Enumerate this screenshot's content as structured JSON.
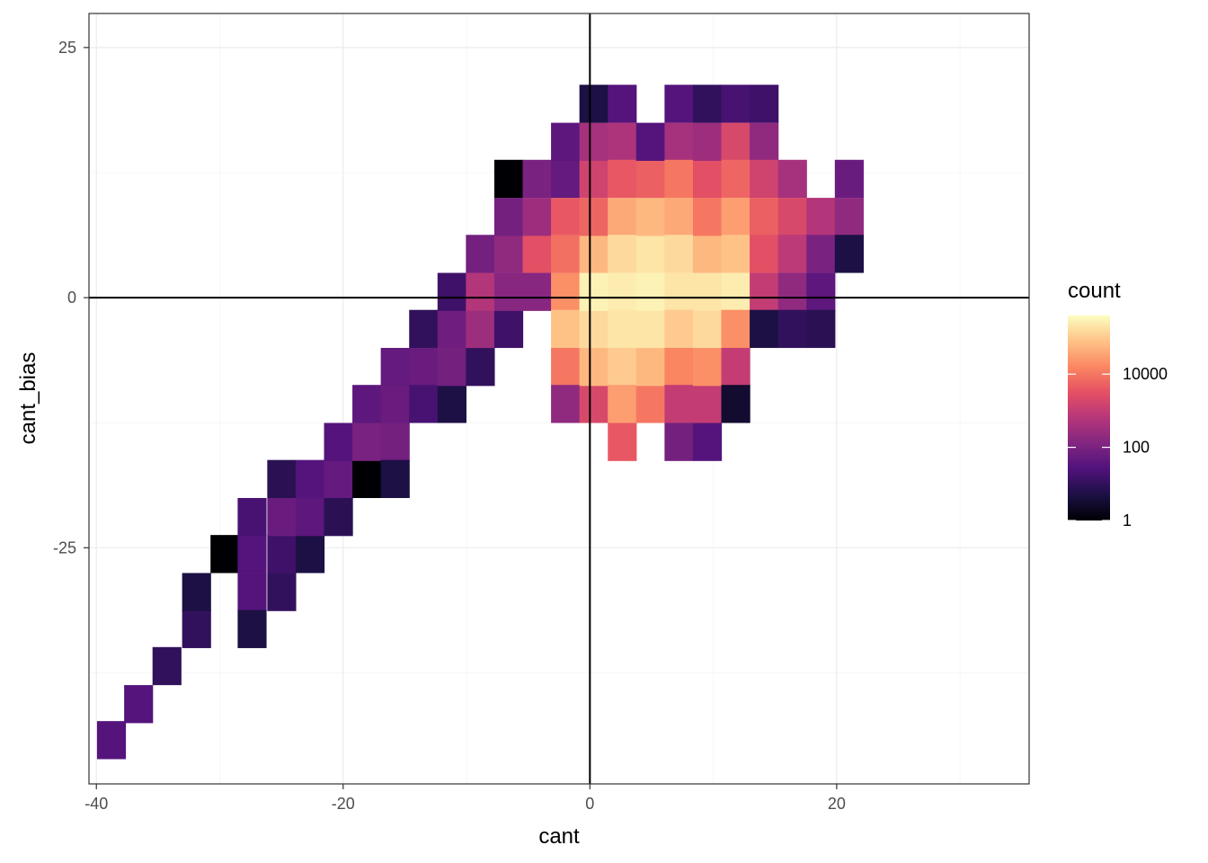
{
  "chart_data": {
    "type": "heatmap",
    "xlabel": "cant",
    "ylabel": "cant_bias",
    "xlim": [
      -40.6,
      35.6
    ],
    "ylim": [
      -48.6,
      28.4
    ],
    "x_ticks": [
      -40,
      -20,
      0,
      20
    ],
    "x_tick_labels": [
      "-40",
      "-20",
      "0",
      "20"
    ],
    "y_ticks": [
      -25,
      0,
      25
    ],
    "y_tick_labels": [
      "-25",
      "0",
      "25"
    ],
    "reference_lines": {
      "x": 0,
      "y": 0
    },
    "grid": true,
    "bin_width": 2.3,
    "bin_height": 3.75,
    "legend": {
      "title": "count",
      "scale": "log10",
      "palette": "magma",
      "breaks": [
        1,
        100,
        10000
      ],
      "break_labels": [
        "1",
        "100",
        "10000"
      ],
      "max": 400000,
      "placement": "right"
    },
    "palette_colors": [
      "#000004",
      "#1c1044",
      "#4f127b",
      "#812581",
      "#b5367a",
      "#e55064",
      "#fb8761",
      "#fec287",
      "#fcfdbf"
    ],
    "bins": [
      {
        "x": -38.8,
        "y": -44.2,
        "count": 30
      },
      {
        "x": -36.6,
        "y": -40.6,
        "count": 30
      },
      {
        "x": -34.3,
        "y": -36.8,
        "count": 10
      },
      {
        "x": -31.9,
        "y": -33.1,
        "count": 10
      },
      {
        "x": -31.9,
        "y": -29.4,
        "count": 5
      },
      {
        "x": -29.6,
        "y": -25.6,
        "count": 1
      },
      {
        "x": -27.4,
        "y": -29.4,
        "count": 30
      },
      {
        "x": -27.4,
        "y": -33.1,
        "count": 5
      },
      {
        "x": -27.4,
        "y": -25.6,
        "count": 30
      },
      {
        "x": -27.4,
        "y": -21.9,
        "count": 20
      },
      {
        "x": -25.0,
        "y": -25.6,
        "count": 15
      },
      {
        "x": -25.0,
        "y": -21.9,
        "count": 60
      },
      {
        "x": -25.0,
        "y": -29.4,
        "count": 10
      },
      {
        "x": -25.0,
        "y": -18.1,
        "count": 8
      },
      {
        "x": -22.7,
        "y": -25.6,
        "count": 5
      },
      {
        "x": -22.7,
        "y": -21.9,
        "count": 40
      },
      {
        "x": -22.7,
        "y": -18.1,
        "count": 30
      },
      {
        "x": -20.4,
        "y": -21.9,
        "count": 8
      },
      {
        "x": -20.4,
        "y": -18.1,
        "count": 50
      },
      {
        "x": -20.4,
        "y": -14.4,
        "count": 30
      },
      {
        "x": -18.1,
        "y": -18.1,
        "count": 1
      },
      {
        "x": -18.1,
        "y": -14.4,
        "count": 100
      },
      {
        "x": -18.1,
        "y": -10.6,
        "count": 40
      },
      {
        "x": -15.8,
        "y": -14.4,
        "count": 80
      },
      {
        "x": -15.8,
        "y": -10.6,
        "count": 60
      },
      {
        "x": -15.8,
        "y": -18.1,
        "count": 5
      },
      {
        "x": -15.8,
        "y": -6.9,
        "count": 50
      },
      {
        "x": -13.5,
        "y": -6.9,
        "count": 60
      },
      {
        "x": -13.5,
        "y": -10.6,
        "count": 20
      },
      {
        "x": -13.5,
        "y": -3.1,
        "count": 10
      },
      {
        "x": -11.2,
        "y": -10.6,
        "count": 5
      },
      {
        "x": -11.2,
        "y": -6.9,
        "count": 80
      },
      {
        "x": -11.2,
        "y": -3.1,
        "count": 70
      },
      {
        "x": -11.2,
        "y": 0.6,
        "count": 15
      },
      {
        "x": -8.9,
        "y": -6.9,
        "count": 10
      },
      {
        "x": -8.9,
        "y": -3.1,
        "count": 300
      },
      {
        "x": -8.9,
        "y": 0.6,
        "count": 600
      },
      {
        "x": -8.9,
        "y": 4.4,
        "count": 80
      },
      {
        "x": -6.6,
        "y": -3.1,
        "count": 15
      },
      {
        "x": -6.6,
        "y": 0.6,
        "count": 150
      },
      {
        "x": -6.6,
        "y": 4.4,
        "count": 200
      },
      {
        "x": -6.6,
        "y": 8.1,
        "count": 80
      },
      {
        "x": -6.6,
        "y": 11.9,
        "count": 1
      },
      {
        "x": -4.3,
        "y": 4.4,
        "count": 3000
      },
      {
        "x": -4.3,
        "y": 8.1,
        "count": 300
      },
      {
        "x": -4.3,
        "y": 11.9,
        "count": 100
      },
      {
        "x": -4.3,
        "y": 0.6,
        "count": 150
      },
      {
        "x": -2.0,
        "y": 8.1,
        "count": 4000
      },
      {
        "x": -2.0,
        "y": 11.9,
        "count": 50
      },
      {
        "x": -2.0,
        "y": 15.6,
        "count": 40
      },
      {
        "x": -2.0,
        "y": 4.4,
        "count": 8000
      },
      {
        "x": -2.0,
        "y": 0.6,
        "count": 20000
      },
      {
        "x": -2.0,
        "y": -3.1,
        "count": 80000
      },
      {
        "x": -2.0,
        "y": -6.9,
        "count": 10000
      },
      {
        "x": -2.0,
        "y": -10.6,
        "count": 200
      },
      {
        "x": 0.3,
        "y": -10.6,
        "count": 2000
      },
      {
        "x": 0.3,
        "y": -6.9,
        "count": 60000
      },
      {
        "x": 0.3,
        "y": -3.1,
        "count": 150000
      },
      {
        "x": 0.3,
        "y": 0.6,
        "count": 300000
      },
      {
        "x": 0.3,
        "y": 4.4,
        "count": 60000
      },
      {
        "x": 0.3,
        "y": 8.1,
        "count": 6000
      },
      {
        "x": 0.3,
        "y": 11.9,
        "count": 1500
      },
      {
        "x": 0.3,
        "y": 15.6,
        "count": 400
      },
      {
        "x": 0.3,
        "y": 19.4,
        "count": 5
      },
      {
        "x": 2.6,
        "y": 19.4,
        "count": 30
      },
      {
        "x": 2.6,
        "y": 15.6,
        "count": 500
      },
      {
        "x": 2.6,
        "y": 11.9,
        "count": 4000
      },
      {
        "x": 2.6,
        "y": 8.1,
        "count": 40000
      },
      {
        "x": 2.6,
        "y": 4.4,
        "count": 150000
      },
      {
        "x": 2.6,
        "y": 0.6,
        "count": 250000
      },
      {
        "x": 2.6,
        "y": -3.1,
        "count": 200000
      },
      {
        "x": 2.6,
        "y": -6.9,
        "count": 100000
      },
      {
        "x": 2.6,
        "y": -10.6,
        "count": 30000
      },
      {
        "x": 2.6,
        "y": -14.4,
        "count": 4000
      },
      {
        "x": 4.9,
        "y": -10.6,
        "count": 10000
      },
      {
        "x": 4.9,
        "y": -6.9,
        "count": 60000
      },
      {
        "x": 4.9,
        "y": -3.1,
        "count": 200000
      },
      {
        "x": 4.9,
        "y": 0.6,
        "count": 300000
      },
      {
        "x": 4.9,
        "y": 4.4,
        "count": 200000
      },
      {
        "x": 4.9,
        "y": 8.1,
        "count": 60000
      },
      {
        "x": 4.9,
        "y": 11.9,
        "count": 5000
      },
      {
        "x": 4.9,
        "y": 15.6,
        "count": 30
      },
      {
        "x": 7.2,
        "y": 19.4,
        "count": 30
      },
      {
        "x": 7.2,
        "y": 15.6,
        "count": 400
      },
      {
        "x": 7.2,
        "y": 11.9,
        "count": 10000
      },
      {
        "x": 7.2,
        "y": 8.1,
        "count": 40000
      },
      {
        "x": 7.2,
        "y": 4.4,
        "count": 150000
      },
      {
        "x": 7.2,
        "y": 0.6,
        "count": 200000
      },
      {
        "x": 7.2,
        "y": -3.1,
        "count": 100000
      },
      {
        "x": 7.2,
        "y": -6.9,
        "count": 15000
      },
      {
        "x": 7.2,
        "y": -10.6,
        "count": 1000
      },
      {
        "x": 7.2,
        "y": -14.4,
        "count": 80
      },
      {
        "x": 9.5,
        "y": -14.4,
        "count": 30
      },
      {
        "x": 9.5,
        "y": -10.6,
        "count": 1000
      },
      {
        "x": 9.5,
        "y": -6.9,
        "count": 20000
      },
      {
        "x": 9.5,
        "y": -3.1,
        "count": 150000
      },
      {
        "x": 9.5,
        "y": 0.6,
        "count": 200000
      },
      {
        "x": 9.5,
        "y": 4.4,
        "count": 60000
      },
      {
        "x": 9.5,
        "y": 8.1,
        "count": 10000
      },
      {
        "x": 9.5,
        "y": 11.9,
        "count": 3000
      },
      {
        "x": 9.5,
        "y": 15.6,
        "count": 300
      },
      {
        "x": 9.5,
        "y": 19.4,
        "count": 10
      },
      {
        "x": 11.8,
        "y": 19.4,
        "count": 20
      },
      {
        "x": 11.8,
        "y": 15.6,
        "count": 2000
      },
      {
        "x": 11.8,
        "y": 11.9,
        "count": 6000
      },
      {
        "x": 11.8,
        "y": 8.1,
        "count": 30000
      },
      {
        "x": 11.8,
        "y": 4.4,
        "count": 80000
      },
      {
        "x": 11.8,
        "y": 0.6,
        "count": 250000
      },
      {
        "x": 11.8,
        "y": -3.1,
        "count": 20000
      },
      {
        "x": 11.8,
        "y": -6.9,
        "count": 1000
      },
      {
        "x": 11.8,
        "y": -10.6,
        "count": 3
      },
      {
        "x": 14.1,
        "y": 19.4,
        "count": 15
      },
      {
        "x": 14.1,
        "y": 15.6,
        "count": 200
      },
      {
        "x": 14.1,
        "y": 11.9,
        "count": 1500
      },
      {
        "x": 14.1,
        "y": 8.1,
        "count": 5000
      },
      {
        "x": 14.1,
        "y": 4.4,
        "count": 3000
      },
      {
        "x": 14.1,
        "y": 0.6,
        "count": 1000
      },
      {
        "x": 14.1,
        "y": -3.1,
        "count": 5
      },
      {
        "x": 16.4,
        "y": 11.9,
        "count": 400
      },
      {
        "x": 16.4,
        "y": 8.1,
        "count": 2000
      },
      {
        "x": 16.4,
        "y": 4.4,
        "count": 800
      },
      {
        "x": 16.4,
        "y": 0.6,
        "count": 200
      },
      {
        "x": 16.4,
        "y": -3.1,
        "count": 10
      },
      {
        "x": 18.7,
        "y": 8.1,
        "count": 600
      },
      {
        "x": 18.7,
        "y": 4.4,
        "count": 100
      },
      {
        "x": 18.7,
        "y": 0.6,
        "count": 40
      },
      {
        "x": 18.7,
        "y": -3.1,
        "count": 8
      },
      {
        "x": 21.0,
        "y": 11.9,
        "count": 60
      },
      {
        "x": 21.0,
        "y": 8.1,
        "count": 200
      },
      {
        "x": 21.0,
        "y": 4.4,
        "count": 5
      }
    ]
  }
}
